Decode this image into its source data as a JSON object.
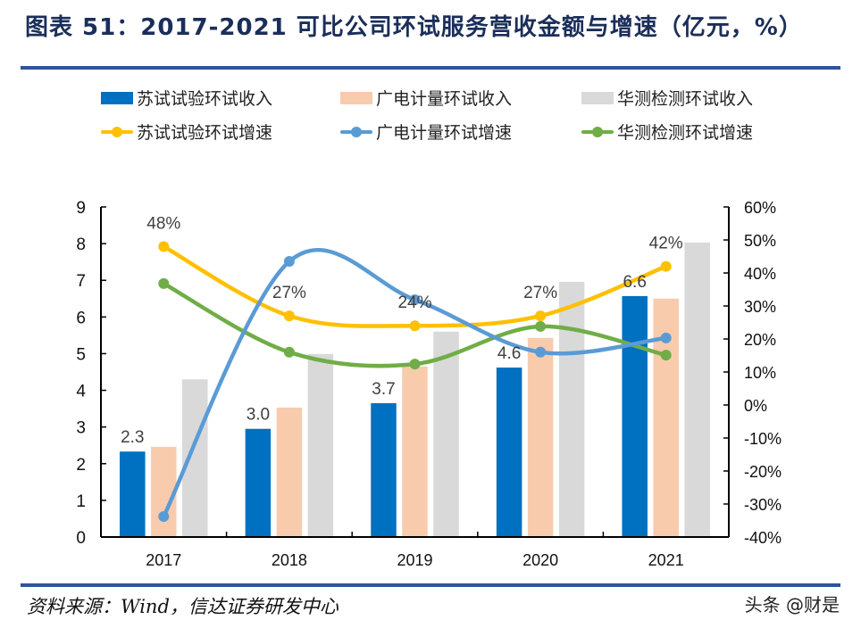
{
  "title": "图表 51：2017-2021 可比公司环试服务营收金额与增速（亿元，%）",
  "source": "资料来源：Wind，信达证券研发中心",
  "watermark": "头条 @财是",
  "colors": {
    "title": "#1B2E5A",
    "rule": "#2F5597",
    "bar_suzhou": "#0070C0",
    "bar_guangdian": "#F8CBAD",
    "bar_huace": "#D9D9D9",
    "line_suzhou": "#FFC000",
    "line_guangdian": "#5B9BD5",
    "line_huace": "#70AD47"
  },
  "chart_data": {
    "type": "bar",
    "title": "2017-2021 可比公司环试服务营收金额与增速（亿元，%）",
    "categories": [
      "2017",
      "2018",
      "2019",
      "2020",
      "2021"
    ],
    "xlabel": "",
    "ylabel": "亿元",
    "ylim": [
      0,
      9
    ],
    "yticks": [
      "0",
      "1",
      "2",
      "3",
      "4",
      "5",
      "6",
      "7",
      "8",
      "9"
    ],
    "y2label": "%",
    "y2lim": [
      -40,
      60
    ],
    "y2ticks": [
      "-40%",
      "-30%",
      "-20%",
      "-10%",
      "0%",
      "10%",
      "20%",
      "30%",
      "40%",
      "50%",
      "60%"
    ],
    "grid": false,
    "legend_position": "top",
    "series": [
      {
        "name": "苏试试验环试收入",
        "kind": "bar",
        "axis": "left",
        "color_key": "bar_suzhou",
        "values": [
          2.33,
          2.95,
          3.65,
          4.62,
          6.57
        ],
        "labels": [
          "2.3",
          "3.0",
          "3.7",
          "4.6",
          "6.6"
        ]
      },
      {
        "name": "广电计量环试收入",
        "kind": "bar",
        "axis": "left",
        "color_key": "bar_guangdian",
        "values": [
          2.46,
          3.53,
          4.65,
          5.43,
          6.5
        ],
        "labels": null
      },
      {
        "name": "华测检测环试收入",
        "kind": "bar",
        "axis": "left",
        "color_key": "bar_huace",
        "values": [
          4.3,
          4.99,
          5.6,
          6.96,
          8.03
        ],
        "labels": null
      },
      {
        "name": "苏试试验环试增速",
        "kind": "line",
        "axis": "right",
        "color_key": "line_suzhou",
        "values": [
          48,
          27,
          24,
          27,
          42
        ],
        "labels": [
          "48%",
          "27%",
          "24%",
          "27%",
          "42%"
        ]
      },
      {
        "name": "广电计量环试增速",
        "kind": "line",
        "axis": "right",
        "color_key": "line_guangdian",
        "values": [
          -33.8,
          43.5,
          31.9,
          16,
          20.3
        ],
        "labels": null
      },
      {
        "name": "华测检测环试增速",
        "kind": "line",
        "axis": "right",
        "color_key": "line_huace",
        "values": [
          36.8,
          16,
          12.4,
          23.8,
          15.1
        ],
        "labels": null
      }
    ]
  }
}
